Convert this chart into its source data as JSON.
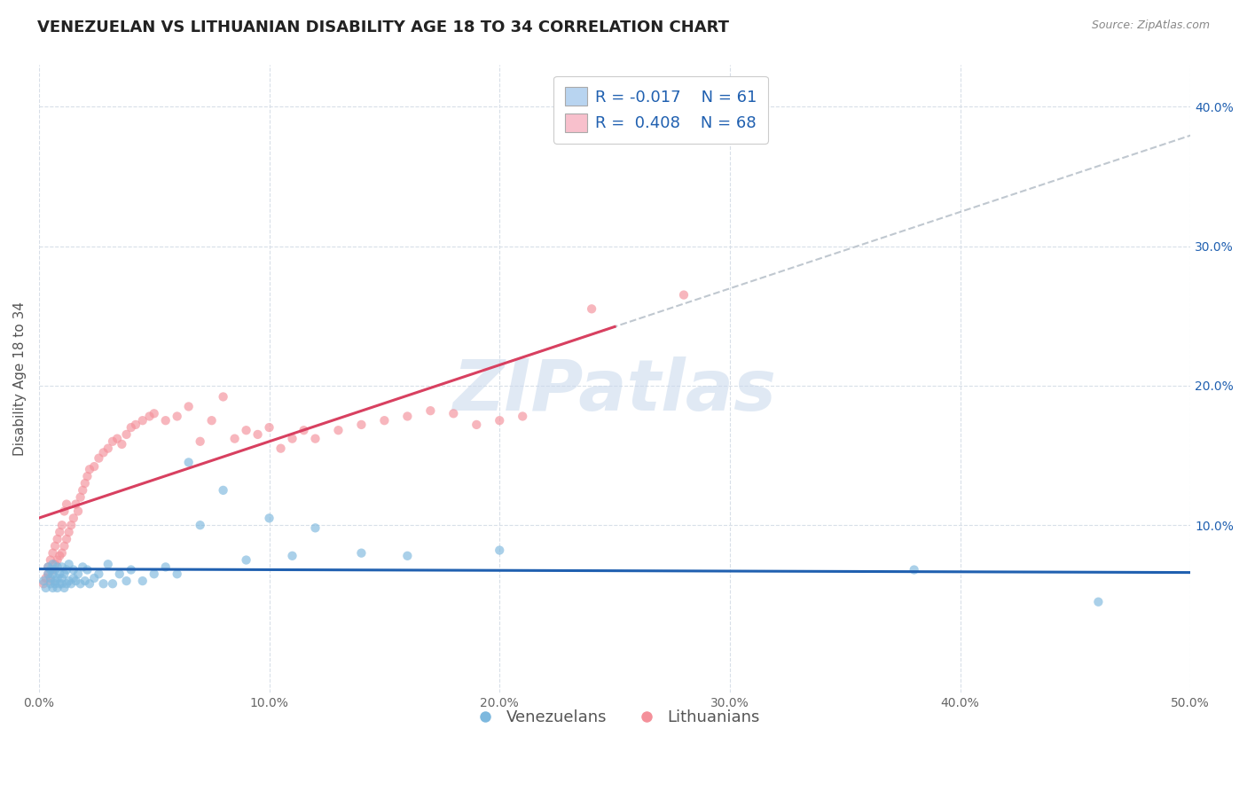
{
  "title": "VENEZUELAN VS LITHUANIAN DISABILITY AGE 18 TO 34 CORRELATION CHART",
  "source_text": "Source: ZipAtlas.com",
  "ylabel": "Disability Age 18 to 34",
  "xlim": [
    0.0,
    0.5
  ],
  "ylim": [
    -0.02,
    0.43
  ],
  "xtick_labels": [
    "0.0%",
    "10.0%",
    "20.0%",
    "30.0%",
    "40.0%",
    "50.0%"
  ],
  "xtick_vals": [
    0.0,
    0.1,
    0.2,
    0.3,
    0.4,
    0.5
  ],
  "ytick_labels": [
    "10.0%",
    "20.0%",
    "30.0%",
    "40.0%"
  ],
  "ytick_vals": [
    0.1,
    0.2,
    0.3,
    0.4
  ],
  "venezuelan_scatter_color": "#7db8de",
  "lithuanian_scatter_color": "#f4909a",
  "trend_venezuelan_color": "#2060b0",
  "trend_lithuanian_color": "#d84060",
  "legend_box_color_venezuelan": "#b8d4f0",
  "legend_box_color_lithuanian": "#f8c0cc",
  "R_venezuelan": -0.017,
  "N_venezuelan": 61,
  "R_lithuanian": 0.408,
  "N_lithuanian": 68,
  "watermark": "ZIPatlas",
  "watermark_color": "#c8d8ec",
  "background_color": "#ffffff",
  "grid_color": "#d8dfe8",
  "venezuelan_x": [
    0.002,
    0.003,
    0.004,
    0.004,
    0.005,
    0.005,
    0.005,
    0.006,
    0.006,
    0.006,
    0.007,
    0.007,
    0.007,
    0.008,
    0.008,
    0.008,
    0.009,
    0.009,
    0.01,
    0.01,
    0.01,
    0.011,
    0.011,
    0.012,
    0.012,
    0.013,
    0.013,
    0.014,
    0.015,
    0.015,
    0.016,
    0.017,
    0.018,
    0.019,
    0.02,
    0.021,
    0.022,
    0.024,
    0.026,
    0.028,
    0.03,
    0.032,
    0.035,
    0.038,
    0.04,
    0.045,
    0.05,
    0.055,
    0.06,
    0.065,
    0.07,
    0.08,
    0.09,
    0.1,
    0.11,
    0.12,
    0.14,
    0.16,
    0.2,
    0.38,
    0.46
  ],
  "venezuelan_y": [
    0.06,
    0.055,
    0.065,
    0.07,
    0.058,
    0.062,
    0.068,
    0.055,
    0.065,
    0.072,
    0.058,
    0.06,
    0.068,
    0.055,
    0.062,
    0.07,
    0.058,
    0.065,
    0.058,
    0.062,
    0.07,
    0.055,
    0.065,
    0.058,
    0.068,
    0.06,
    0.072,
    0.058,
    0.062,
    0.068,
    0.06,
    0.065,
    0.058,
    0.07,
    0.06,
    0.068,
    0.058,
    0.062,
    0.065,
    0.058,
    0.072,
    0.058,
    0.065,
    0.06,
    0.068,
    0.06,
    0.065,
    0.07,
    0.065,
    0.145,
    0.1,
    0.125,
    0.075,
    0.105,
    0.078,
    0.098,
    0.08,
    0.078,
    0.082,
    0.068,
    0.045
  ],
  "lithuanian_x": [
    0.002,
    0.003,
    0.004,
    0.004,
    0.005,
    0.005,
    0.006,
    0.006,
    0.007,
    0.007,
    0.008,
    0.008,
    0.009,
    0.009,
    0.01,
    0.01,
    0.011,
    0.011,
    0.012,
    0.012,
    0.013,
    0.014,
    0.015,
    0.016,
    0.017,
    0.018,
    0.019,
    0.02,
    0.021,
    0.022,
    0.024,
    0.026,
    0.028,
    0.03,
    0.032,
    0.034,
    0.036,
    0.038,
    0.04,
    0.042,
    0.045,
    0.048,
    0.05,
    0.055,
    0.06,
    0.065,
    0.07,
    0.075,
    0.08,
    0.085,
    0.09,
    0.095,
    0.1,
    0.105,
    0.11,
    0.115,
    0.12,
    0.13,
    0.14,
    0.15,
    0.16,
    0.17,
    0.18,
    0.19,
    0.2,
    0.21,
    0.24,
    0.28
  ],
  "lithuanian_y": [
    0.058,
    0.062,
    0.065,
    0.07,
    0.06,
    0.075,
    0.068,
    0.08,
    0.072,
    0.085,
    0.075,
    0.09,
    0.078,
    0.095,
    0.08,
    0.1,
    0.085,
    0.11,
    0.09,
    0.115,
    0.095,
    0.1,
    0.105,
    0.115,
    0.11,
    0.12,
    0.125,
    0.13,
    0.135,
    0.14,
    0.142,
    0.148,
    0.152,
    0.155,
    0.16,
    0.162,
    0.158,
    0.165,
    0.17,
    0.172,
    0.175,
    0.178,
    0.18,
    0.175,
    0.178,
    0.185,
    0.16,
    0.175,
    0.192,
    0.162,
    0.168,
    0.165,
    0.17,
    0.155,
    0.162,
    0.168,
    0.162,
    0.168,
    0.172,
    0.175,
    0.178,
    0.182,
    0.18,
    0.172,
    0.175,
    0.178,
    0.255,
    0.265
  ],
  "title_fontsize": 13,
  "axis_label_fontsize": 11,
  "tick_fontsize": 10,
  "legend_fontsize": 13
}
